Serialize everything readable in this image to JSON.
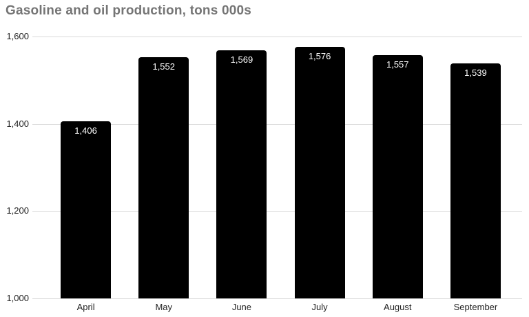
{
  "title": "Gasoline and oil production, tons 000s",
  "colors": {
    "background": "#ffffff",
    "bar": "#000000",
    "bar_label": "#ffffff",
    "title": "#757575",
    "axis_label": "#222222",
    "gridline": "#d9d9d9"
  },
  "chart_data": {
    "type": "bar",
    "title": "Gasoline and oil production, tons 000s",
    "categories": [
      "April",
      "May",
      "June",
      "July",
      "August",
      "September"
    ],
    "values": [
      1406,
      1552,
      1569,
      1576,
      1557,
      1539
    ],
    "value_labels": [
      "1,406",
      "1,552",
      "1,569",
      "1,576",
      "1,557",
      "1,539"
    ],
    "xlabel": "",
    "ylabel": "",
    "ylim": [
      1000,
      1600
    ],
    "yticks": [
      1000,
      1200,
      1400,
      1600
    ],
    "ytick_labels": [
      "1,000",
      "1,200",
      "1,400",
      "1,600"
    ],
    "grid": true,
    "legend": "none",
    "value_label_position": "inside-top"
  }
}
